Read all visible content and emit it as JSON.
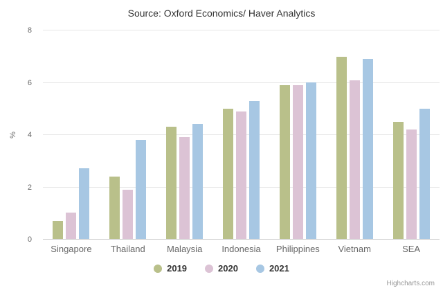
{
  "title": "Source: Oxford Economics/ Haver Analytics",
  "credits_label": "Highcharts.com",
  "colors": {
    "series_2019": "#b9c08a",
    "series_2020": "#dcc3d5",
    "series_2021": "#a7c7e3",
    "gridline": "#e6e6e6",
    "axis_line": "#cccccc",
    "title_text": "#333333",
    "axis_text": "#666666",
    "legend_text": "#333333",
    "credits_text": "#999999"
  },
  "chart_data": {
    "type": "bar",
    "title": "Source: Oxford Economics/ Haver Analytics",
    "categories": [
      "Singapore",
      "Thailand",
      "Malaysia",
      "Indonesia",
      "Philippines",
      "Vietnam",
      "SEA"
    ],
    "series": [
      {
        "name": "2019",
        "color": "#b9c08a",
        "values": [
          0.7,
          2.4,
          4.3,
          5.0,
          5.9,
          7.0,
          4.5
        ]
      },
      {
        "name": "2020",
        "color": "#dcc3d5",
        "values": [
          1.0,
          1.9,
          3.9,
          4.9,
          5.9,
          6.1,
          4.2
        ]
      },
      {
        "name": "2021",
        "color": "#a7c7e3",
        "values": [
          2.7,
          3.8,
          4.4,
          5.3,
          6.0,
          6.9,
          5.0
        ]
      }
    ],
    "xlabel": "",
    "ylabel": "%",
    "ylim": [
      0,
      8
    ],
    "yticks": [
      0,
      2,
      4,
      6,
      8
    ],
    "grid": true,
    "legend_position": "bottom"
  }
}
